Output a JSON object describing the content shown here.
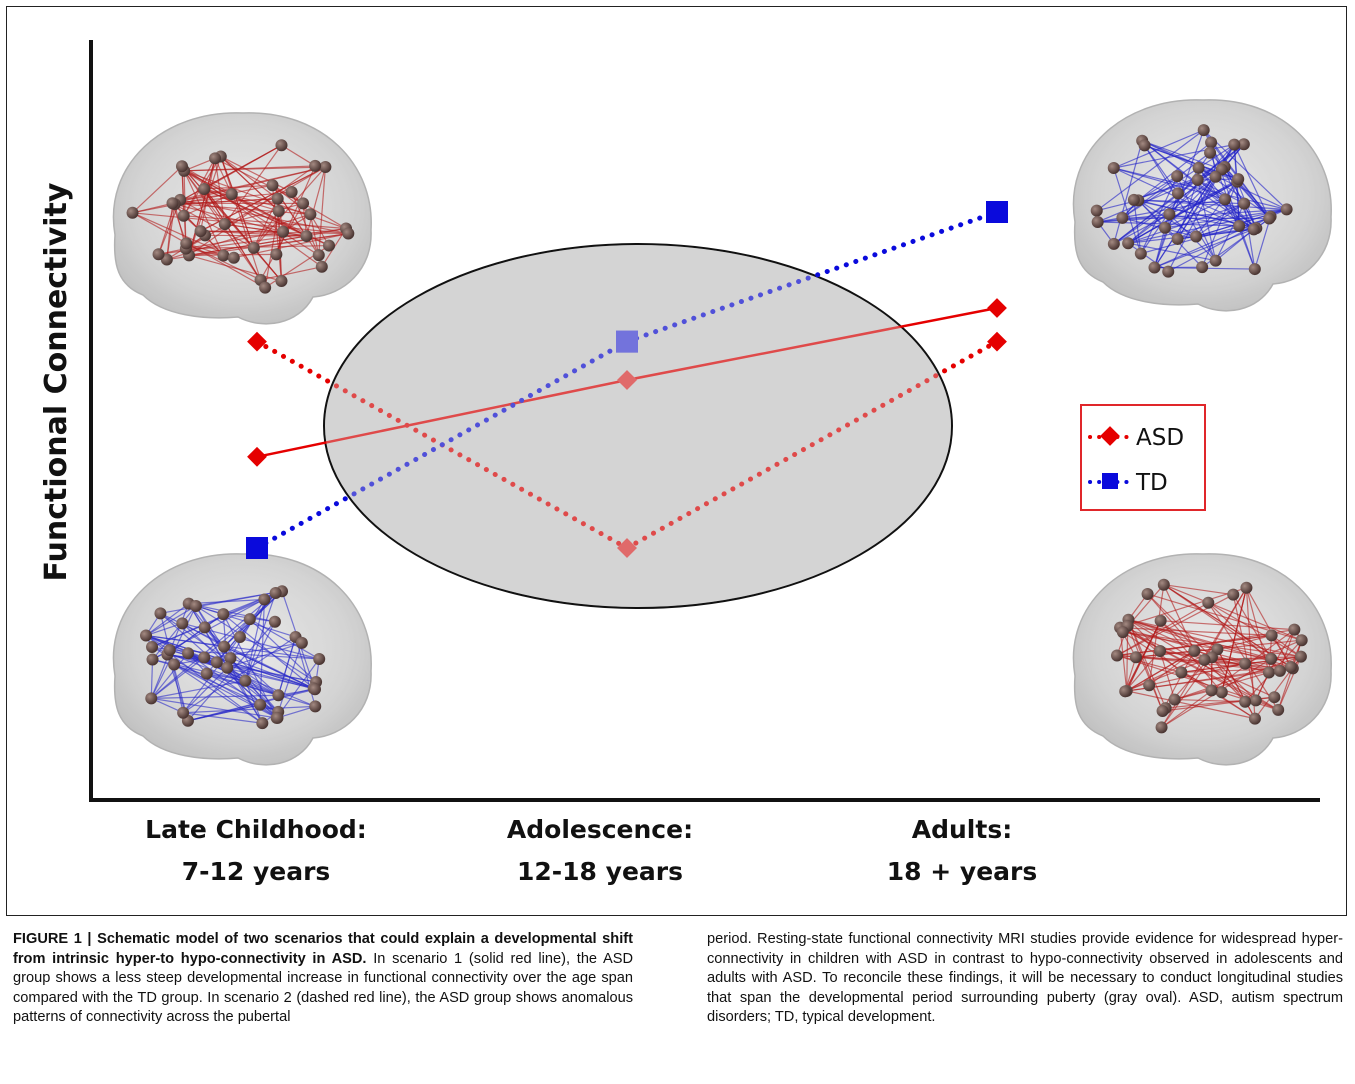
{
  "figure": {
    "y_axis_title": "Functional Connectivity",
    "categories": [
      {
        "line1": "Late Childhood:",
        "line2": "7-12 years"
      },
      {
        "line1": "Adolescence:",
        "line2": "12-18 years"
      },
      {
        "line1": "Adults:",
        "line2": "18 +  years"
      }
    ],
    "legend": [
      {
        "label": "ASD",
        "color": "#e50000",
        "marker": "diamond"
      },
      {
        "label": "TD",
        "color": "#0a0adc",
        "marker": "square"
      }
    ],
    "brain_images": [
      {
        "name": "brain-red-top-left",
        "edge_color": "#b31c1c"
      },
      {
        "name": "brain-blue-bottom-left",
        "edge_color": "#2b2bc8"
      },
      {
        "name": "brain-blue-top-right",
        "edge_color": "#2020c8"
      },
      {
        "name": "brain-red-bottom-right",
        "edge_color": "#b31c1c"
      }
    ],
    "oval_color": "#d4d4d4"
  },
  "chart_data": {
    "type": "line",
    "categories": [
      "Late Childhood: 7-12 years",
      "Adolescence: 12-18 years",
      "Adults: 18 +  years"
    ],
    "series": [
      {
        "name": "ASD",
        "style": "solid",
        "color": "#e50000",
        "marker": "diamond",
        "values": [
          0.39,
          0.55,
          0.7
        ]
      },
      {
        "name": "ASD",
        "style": "dotted",
        "color": "#e50000",
        "marker": "diamond",
        "values": [
          0.63,
          0.2,
          0.63
        ]
      },
      {
        "name": "TD",
        "style": "dotted",
        "color": "#0a0adc",
        "marker": "square",
        "values": [
          0.2,
          0.63,
          0.9
        ]
      }
    ],
    "ylabel": "Functional Connectivity",
    "xlabel": "",
    "ylim": [
      0,
      1
    ],
    "grid": false,
    "legend_position": "right",
    "highlight": "gray oval around adolescence"
  },
  "caption": {
    "bold": "FIGURE 1 | Schematic model of two scenarios that could explain a developmental shift from intrinsic hyper-to hypo-connectivity in ASD.",
    "left_text": "In scenario 1 (solid red line), the ASD group shows a less steep developmental increase in functional connectivity over the age span compared with the TD group. In scenario 2 (dashed red line), the ASD group shows anomalous patterns of connectivity across the pubertal",
    "right_text": "period. Resting-state functional connectivity MRI studies provide evidence for widespread hyper-connectivity in children with ASD in contrast to hypo-connectivity observed in adolescents and adults with ASD. To reconcile these findings, it will be necessary to conduct longitudinal studies that span the developmental period surrounding puberty (gray oval). ASD, autism spectrum disorders; TD, typical development."
  }
}
